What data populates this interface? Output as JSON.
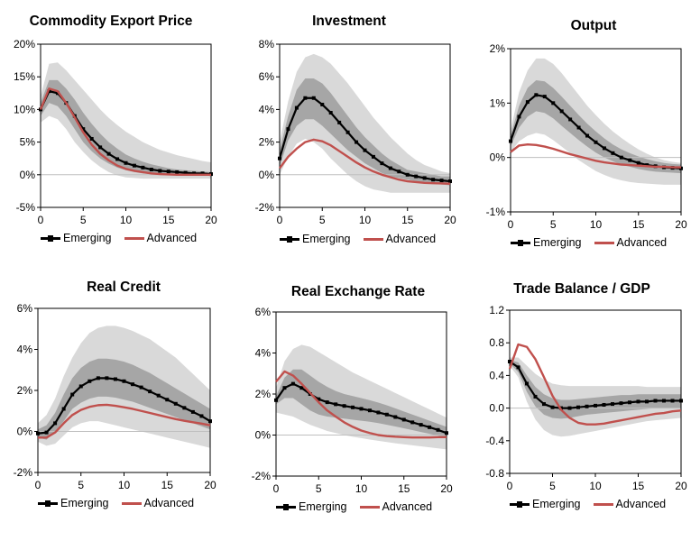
{
  "legend": {
    "emerging": "Emerging",
    "advanced": "Advanced"
  },
  "colors": {
    "emerging": "#000000",
    "advanced": "#c0504d",
    "band_outer": "#d9d9d9",
    "band_inner": "#a6a6a6",
    "zero_line": "#bfbfbf"
  },
  "chart_data": [
    {
      "type": "line",
      "title": "Commodity Export Price",
      "x": [
        0,
        1,
        2,
        3,
        4,
        5,
        6,
        7,
        8,
        9,
        10,
        11,
        12,
        13,
        14,
        15,
        16,
        17,
        18,
        19,
        20
      ],
      "ylim": [
        -5,
        20
      ],
      "yticks": [
        -5,
        0,
        5,
        10,
        15,
        20
      ],
      "ytick_labels": [
        "-5%",
        "0%",
        "5%",
        "10%",
        "15%",
        "20%"
      ],
      "xticks": [
        0,
        5,
        10,
        15,
        20
      ],
      "series": [
        {
          "name": "Emerging",
          "values": [
            10,
            12.8,
            12.5,
            11,
            9,
            7,
            5.5,
            4.2,
            3.2,
            2.4,
            1.8,
            1.4,
            1.1,
            0.8,
            0.6,
            0.5,
            0.4,
            0.3,
            0.2,
            0.2,
            0.1
          ]
        },
        {
          "name": "Advanced",
          "values": [
            10,
            13.2,
            12.8,
            11,
            8.8,
            6.5,
            4.6,
            3.2,
            2.2,
            1.4,
            0.9,
            0.6,
            0.4,
            0.2,
            0.1,
            0.05,
            0,
            0,
            0,
            0,
            0
          ]
        }
      ],
      "bands": {
        "outer_upper": [
          12,
          17,
          17.2,
          16,
          14.5,
          13,
          11.5,
          10,
          8.7,
          7.6,
          6.6,
          5.8,
          5,
          4.4,
          3.8,
          3.4,
          3,
          2.7,
          2.4,
          2.1,
          1.9
        ],
        "outer_lower": [
          8,
          9,
          8.5,
          7,
          5,
          3.5,
          2.2,
          1.2,
          0.4,
          -0.1,
          -0.4,
          -0.5,
          -0.6,
          -0.6,
          -0.6,
          -0.6,
          -0.6,
          -0.6,
          -0.6,
          -0.6,
          -0.6
        ],
        "inner_upper": [
          11,
          14.5,
          14.5,
          13.2,
          11.5,
          9.5,
          7.8,
          6.3,
          5,
          4,
          3.1,
          2.5,
          2,
          1.6,
          1.3,
          1,
          0.8,
          0.7,
          0.6,
          0.5,
          0.4
        ],
        "inner_lower": [
          9,
          11,
          10.5,
          9,
          7,
          5,
          3.6,
          2.5,
          1.7,
          1.1,
          0.7,
          0.4,
          0.2,
          0.1,
          0,
          -0.1,
          -0.1,
          -0.1,
          -0.1,
          -0.1,
          -0.1
        ]
      }
    },
    {
      "type": "line",
      "title": "Investment",
      "x": [
        0,
        1,
        2,
        3,
        4,
        5,
        6,
        7,
        8,
        9,
        10,
        11,
        12,
        13,
        14,
        15,
        16,
        17,
        18,
        19,
        20
      ],
      "ylim": [
        -2,
        8
      ],
      "yticks": [
        -2,
        0,
        2,
        4,
        6,
        8
      ],
      "ytick_labels": [
        "-2%",
        "0%",
        "2%",
        "4%",
        "6%",
        "8%"
      ],
      "xticks": [
        0,
        5,
        10,
        15,
        20
      ],
      "series": [
        {
          "name": "Emerging",
          "values": [
            1,
            2.8,
            4.1,
            4.7,
            4.7,
            4.3,
            3.8,
            3.2,
            2.6,
            2,
            1.5,
            1.1,
            0.7,
            0.4,
            0.2,
            0,
            -0.1,
            -0.2,
            -0.3,
            -0.35,
            -0.4
          ]
        },
        {
          "name": "Advanced",
          "values": [
            0.4,
            1.1,
            1.6,
            2,
            2.15,
            2.05,
            1.8,
            1.45,
            1.1,
            0.75,
            0.45,
            0.2,
            0,
            -0.15,
            -0.3,
            -0.4,
            -0.45,
            -0.5,
            -0.52,
            -0.53,
            -0.55
          ]
        }
      ],
      "bands": {
        "outer_upper": [
          2,
          4.5,
          6.3,
          7.2,
          7.4,
          7.2,
          6.8,
          6.2,
          5.6,
          4.9,
          4.2,
          3.5,
          2.9,
          2.3,
          1.8,
          1.3,
          0.9,
          0.6,
          0.4,
          0.2,
          0.1
        ],
        "outer_lower": [
          0,
          1.1,
          1.9,
          2.2,
          2,
          1.6,
          1,
          0.5,
          0,
          -0.4,
          -0.7,
          -0.9,
          -1,
          -1.1,
          -1.1,
          -1.1,
          -1.1,
          -1.1,
          -1.1,
          -1.1,
          -1.1
        ],
        "inner_upper": [
          1.5,
          3.6,
          5.2,
          5.9,
          5.9,
          5.6,
          5,
          4.3,
          3.6,
          2.9,
          2.3,
          1.8,
          1.3,
          0.9,
          0.6,
          0.3,
          0.2,
          0.1,
          0,
          -0.1,
          -0.1
        ],
        "inner_lower": [
          0.5,
          2.1,
          3,
          3.4,
          3.4,
          3,
          2.5,
          2,
          1.5,
          1.1,
          0.7,
          0.4,
          0.1,
          -0.1,
          -0.2,
          -0.3,
          -0.4,
          -0.5,
          -0.55,
          -0.6,
          -0.65
        ]
      }
    },
    {
      "type": "line",
      "title": "Output",
      "x": [
        0,
        1,
        2,
        3,
        4,
        5,
        6,
        7,
        8,
        9,
        10,
        11,
        12,
        13,
        14,
        15,
        16,
        17,
        18,
        19,
        20
      ],
      "ylim": [
        -1,
        2
      ],
      "yticks": [
        -1,
        0,
        1,
        2
      ],
      "ytick_labels": [
        "-1%",
        "0%",
        "1%",
        "2%"
      ],
      "xticks": [
        0,
        5,
        10,
        15,
        20
      ],
      "series": [
        {
          "name": "Emerging",
          "values": [
            0.3,
            0.75,
            1.02,
            1.15,
            1.12,
            1,
            0.85,
            0.7,
            0.55,
            0.4,
            0.28,
            0.17,
            0.08,
            0,
            -0.05,
            -0.1,
            -0.14,
            -0.16,
            -0.18,
            -0.19,
            -0.2
          ]
        },
        {
          "name": "Advanced",
          "values": [
            0.1,
            0.22,
            0.24,
            0.23,
            0.2,
            0.16,
            0.11,
            0.06,
            0.02,
            -0.02,
            -0.06,
            -0.09,
            -0.11,
            -0.13,
            -0.14,
            -0.15,
            -0.16,
            -0.17,
            -0.17,
            -0.18,
            -0.18
          ]
        }
      ],
      "bands": {
        "outer_upper": [
          0.5,
          1.2,
          1.6,
          1.82,
          1.82,
          1.72,
          1.55,
          1.35,
          1.15,
          0.95,
          0.78,
          0.62,
          0.48,
          0.36,
          0.25,
          0.15,
          0.07,
          0,
          -0.05,
          -0.08,
          -0.1
        ],
        "outer_lower": [
          0.1,
          0.3,
          0.4,
          0.45,
          0.42,
          0.32,
          0.2,
          0.08,
          -0.05,
          -0.15,
          -0.25,
          -0.32,
          -0.38,
          -0.42,
          -0.45,
          -0.47,
          -0.48,
          -0.49,
          -0.5,
          -0.5,
          -0.5
        ],
        "inner_upper": [
          0.4,
          0.95,
          1.28,
          1.42,
          1.4,
          1.28,
          1.12,
          0.95,
          0.78,
          0.62,
          0.48,
          0.35,
          0.24,
          0.15,
          0.08,
          0.02,
          -0.03,
          -0.07,
          -0.1,
          -0.12,
          -0.13
        ],
        "inner_lower": [
          0.2,
          0.55,
          0.75,
          0.85,
          0.82,
          0.72,
          0.58,
          0.45,
          0.32,
          0.2,
          0.09,
          0,
          -0.07,
          -0.13,
          -0.17,
          -0.21,
          -0.24,
          -0.26,
          -0.27,
          -0.28,
          -0.29
        ]
      }
    },
    {
      "type": "line",
      "title": "Real Credit",
      "x": [
        0,
        1,
        2,
        3,
        4,
        5,
        6,
        7,
        8,
        9,
        10,
        11,
        12,
        13,
        14,
        15,
        16,
        17,
        18,
        19,
        20
      ],
      "ylim": [
        -2,
        6
      ],
      "yticks": [
        -2,
        0,
        2,
        4,
        6
      ],
      "ytick_labels": [
        "-2%",
        "0%",
        "2%",
        "4%",
        "6%"
      ],
      "xticks": [
        0,
        5,
        10,
        15,
        20
      ],
      "series": [
        {
          "name": "Emerging",
          "values": [
            -0.1,
            -0.05,
            0.4,
            1.1,
            1.8,
            2.2,
            2.45,
            2.6,
            2.6,
            2.55,
            2.45,
            2.3,
            2.15,
            1.95,
            1.75,
            1.55,
            1.35,
            1.15,
            0.95,
            0.75,
            0.5
          ]
        },
        {
          "name": "Advanced",
          "values": [
            -0.3,
            -0.3,
            -0.05,
            0.4,
            0.8,
            1.05,
            1.2,
            1.28,
            1.3,
            1.25,
            1.18,
            1.1,
            1,
            0.9,
            0.8,
            0.7,
            0.6,
            0.52,
            0.45,
            0.38,
            0.3
          ]
        }
      ],
      "bands": {
        "outer_upper": [
          0.4,
          0.8,
          1.6,
          2.7,
          3.6,
          4.3,
          4.8,
          5.05,
          5.15,
          5.15,
          5.05,
          4.9,
          4.7,
          4.5,
          4.2,
          3.9,
          3.6,
          3.2,
          2.8,
          2.4,
          2
        ],
        "outer_lower": [
          -0.5,
          -0.7,
          -0.6,
          -0.2,
          0.2,
          0.4,
          0.5,
          0.5,
          0.4,
          0.3,
          0.2,
          0.1,
          0,
          -0.1,
          -0.2,
          -0.3,
          -0.4,
          -0.5,
          -0.6,
          -0.7,
          -0.8
        ],
        "inner_upper": [
          0.1,
          0.3,
          0.9,
          1.8,
          2.6,
          3.1,
          3.4,
          3.55,
          3.55,
          3.5,
          3.4,
          3.25,
          3.05,
          2.85,
          2.6,
          2.35,
          2.1,
          1.85,
          1.6,
          1.35,
          1.1
        ],
        "inner_lower": [
          -0.3,
          -0.4,
          0,
          0.5,
          1.1,
          1.4,
          1.6,
          1.7,
          1.7,
          1.65,
          1.55,
          1.45,
          1.3,
          1.15,
          1,
          0.85,
          0.7,
          0.55,
          0.4,
          0.25,
          0.1
        ]
      }
    },
    {
      "type": "line",
      "title": "Real Exchange Rate",
      "x": [
        0,
        1,
        2,
        3,
        4,
        5,
        6,
        7,
        8,
        9,
        10,
        11,
        12,
        13,
        14,
        15,
        16,
        17,
        18,
        19,
        20
      ],
      "ylim": [
        -2,
        6
      ],
      "yticks": [
        -2,
        0,
        2,
        4,
        6
      ],
      "ytick_labels": [
        "-2%",
        "0%",
        "2%",
        "4%",
        "6%"
      ],
      "xticks": [
        0,
        5,
        10,
        15,
        20
      ],
      "series": [
        {
          "name": "Emerging",
          "values": [
            1.7,
            2.3,
            2.5,
            2.3,
            2,
            1.75,
            1.6,
            1.5,
            1.42,
            1.35,
            1.28,
            1.2,
            1.1,
            1,
            0.88,
            0.75,
            0.62,
            0.5,
            0.38,
            0.25,
            0.1
          ]
        },
        {
          "name": "Advanced",
          "values": [
            2.6,
            3.1,
            2.9,
            2.5,
            2.05,
            1.6,
            1.2,
            0.9,
            0.62,
            0.4,
            0.22,
            0.1,
            0,
            -0.05,
            -0.08,
            -0.1,
            -0.12,
            -0.12,
            -0.12,
            -0.1,
            -0.1
          ]
        }
      ],
      "bands": {
        "outer_upper": [
          2.3,
          3.6,
          4.2,
          4.4,
          4.3,
          4.05,
          3.8,
          3.55,
          3.3,
          3.05,
          2.85,
          2.65,
          2.45,
          2.25,
          2.05,
          1.85,
          1.65,
          1.45,
          1.25,
          1.05,
          0.85
        ],
        "outer_lower": [
          1.1,
          1,
          0.9,
          0.7,
          0.5,
          0.35,
          0.2,
          0.1,
          0,
          -0.08,
          -0.15,
          -0.22,
          -0.28,
          -0.34,
          -0.4,
          -0.45,
          -0.5,
          -0.55,
          -0.6,
          -0.65,
          -0.7
        ],
        "inner_upper": [
          1.9,
          2.8,
          3.2,
          3.2,
          2.9,
          2.6,
          2.35,
          2.15,
          2,
          1.9,
          1.8,
          1.7,
          1.58,
          1.45,
          1.3,
          1.15,
          1,
          0.85,
          0.7,
          0.55,
          0.4
        ],
        "inner_lower": [
          1.5,
          1.8,
          1.8,
          1.5,
          1.2,
          1,
          0.9,
          0.85,
          0.8,
          0.75,
          0.7,
          0.65,
          0.58,
          0.5,
          0.42,
          0.33,
          0.24,
          0.15,
          0.06,
          -0.03,
          -0.12
        ]
      }
    },
    {
      "type": "line",
      "title": "Trade Balance / GDP",
      "x": [
        0,
        1,
        2,
        3,
        4,
        5,
        6,
        7,
        8,
        9,
        10,
        11,
        12,
        13,
        14,
        15,
        16,
        17,
        18,
        19,
        20
      ],
      "ylim": [
        -0.8,
        1.2
      ],
      "yticks": [
        -0.8,
        -0.4,
        0,
        0.4,
        0.8,
        1.2
      ],
      "ytick_labels": [
        "-0.8",
        "-0.4",
        "0.0",
        "0.4",
        "0.8",
        "1.2"
      ],
      "xticks": [
        0,
        5,
        10,
        15,
        20
      ],
      "series": [
        {
          "name": "Emerging",
          "values": [
            0.57,
            0.5,
            0.3,
            0.14,
            0.05,
            0.01,
            0,
            0,
            0.01,
            0.02,
            0.03,
            0.04,
            0.05,
            0.06,
            0.07,
            0.08,
            0.08,
            0.09,
            0.09,
            0.09,
            0.09
          ]
        },
        {
          "name": "Advanced",
          "values": [
            0.48,
            0.78,
            0.75,
            0.6,
            0.38,
            0.15,
            -0.02,
            -0.12,
            -0.18,
            -0.2,
            -0.2,
            -0.19,
            -0.17,
            -0.15,
            -0.13,
            -0.11,
            -0.09,
            -0.07,
            -0.06,
            -0.04,
            -0.03
          ]
        }
      ],
      "bands": {
        "outer_upper": [
          0.62,
          0.62,
          0.52,
          0.42,
          0.35,
          0.3,
          0.28,
          0.27,
          0.27,
          0.27,
          0.27,
          0.27,
          0.27,
          0.27,
          0.27,
          0.27,
          0.26,
          0.26,
          0.26,
          0.26,
          0.26
        ],
        "outer_lower": [
          0.52,
          0.38,
          0.08,
          -0.14,
          -0.27,
          -0.33,
          -0.35,
          -0.34,
          -0.32,
          -0.3,
          -0.28,
          -0.26,
          -0.24,
          -0.22,
          -0.2,
          -0.18,
          -0.16,
          -0.15,
          -0.14,
          -0.13,
          -0.12
        ],
        "inner_upper": [
          0.59,
          0.56,
          0.4,
          0.26,
          0.17,
          0.12,
          0.1,
          0.1,
          0.11,
          0.12,
          0.13,
          0.14,
          0.15,
          0.16,
          0.16,
          0.17,
          0.17,
          0.17,
          0.17,
          0.17,
          0.17
        ],
        "inner_lower": [
          0.55,
          0.44,
          0.2,
          0.02,
          -0.08,
          -0.12,
          -0.13,
          -0.12,
          -0.1,
          -0.08,
          -0.07,
          -0.06,
          -0.05,
          -0.04,
          -0.03,
          -0.02,
          -0.01,
          0,
          0,
          0,
          0
        ]
      }
    }
  ]
}
